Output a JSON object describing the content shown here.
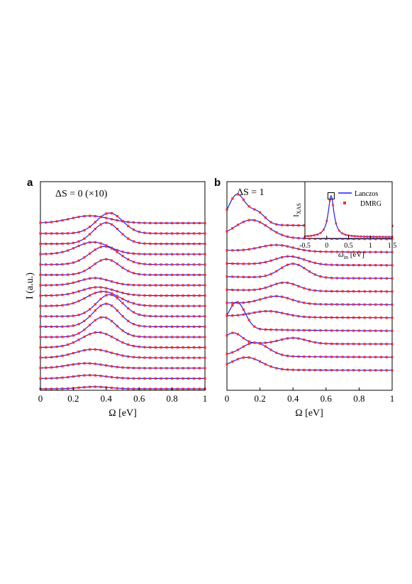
{
  "colors": {
    "line": "#1a1aff",
    "marker": "#ff2a2a",
    "axis": "#000000"
  },
  "chart_data": [
    {
      "id": "a",
      "type": "line",
      "panel_label": "a",
      "annotation": "ΔS = 0 (×10)",
      "xlabel": "Ω [eV]",
      "ylabel": "I (a.u.)",
      "xlim": [
        0,
        1
      ],
      "xticks": [
        "0",
        "0.2",
        "0.4",
        "0.6",
        "0.8",
        "1"
      ],
      "grid": false,
      "series": [
        {
          "offset": 0,
          "peak_x": 0.33,
          "peak_height": 0.35,
          "width": 0.09
        },
        {
          "offset": 1,
          "peak_x": 0.3,
          "peak_height": 0.55,
          "width": 0.1
        },
        {
          "offset": 2,
          "peak_x": 0.28,
          "peak_height": 0.8,
          "width": 0.11
        },
        {
          "offset": 3,
          "peak_x": 0.32,
          "peak_height": 1.4,
          "width": 0.11
        },
        {
          "offset": 4,
          "peak_x": 0.35,
          "peak_height": 2.5,
          "width": 0.1
        },
        {
          "offset": 5,
          "peak_x": 0.38,
          "peak_height": 3.3,
          "width": 0.08
        },
        {
          "offset": 6,
          "peak_x": 0.4,
          "peak_height": 3.8,
          "width": 0.08
        },
        {
          "offset": 7,
          "peak_x": 0.42,
          "peak_height": 3.6,
          "width": 0.08
        },
        {
          "offset": 8,
          "peak_x": 0.38,
          "peak_height": 2.4,
          "width": 0.1
        },
        {
          "offset": 9,
          "peak_x": 0.35,
          "peak_height": 1.4,
          "width": 0.1
        },
        {
          "offset": 10,
          "peak_x": 0.33,
          "peak_height": 1.2,
          "width": 0.09
        },
        {
          "offset": 11,
          "peak_x": 0.4,
          "peak_height": 2.6,
          "width": 0.08
        },
        {
          "offset": 12,
          "peak_x": 0.39,
          "peak_height": 3.0,
          "width": 0.09
        },
        {
          "offset": 13,
          "peak_x": 0.32,
          "peak_height": 2.0,
          "width": 0.1
        },
        {
          "offset": 14,
          "peak_x": 0.4,
          "peak_height": 3.5,
          "width": 0.08
        },
        {
          "offset": 15,
          "peak_x": 0.42,
          "peak_height": 3.4,
          "width": 0.08
        },
        {
          "offset": 16,
          "peak_x": 0.3,
          "peak_height": 1.2,
          "width": 0.12
        }
      ]
    },
    {
      "id": "b",
      "type": "line",
      "panel_label": "b",
      "annotation": "ΔS = 1",
      "xlabel": "Ω [eV]",
      "xlim": [
        0,
        1
      ],
      "xticks": [
        "0",
        "0.2",
        "0.4",
        "0.6",
        "0.8",
        "1"
      ],
      "grid": false,
      "series": [
        {
          "offset": 0,
          "peaks": [
            [
              0.12,
              1.9,
              0.09
            ]
          ],
          "tail": 0.2
        },
        {
          "offset": 1,
          "peaks": [
            [
              0.17,
              2.1,
              0.08
            ]
          ],
          "tail": 0.3
        },
        {
          "offset": 2,
          "peaks": [
            [
              0.04,
              1.6,
              0.05
            ],
            [
              0.4,
              0.9,
              0.08
            ]
          ],
          "tail": 0.2
        },
        {
          "offset": 3,
          "peaks": [
            [
              0.06,
              4.2,
              0.05
            ]
          ],
          "tail": 0.4
        },
        {
          "offset": 4,
          "peaks": [
            [
              0.25,
              0.9,
              0.1
            ]
          ],
          "tail": 0.3
        },
        {
          "offset": 5,
          "peaks": [
            [
              0.3,
              1.2,
              0.09
            ]
          ],
          "tail": 0.3
        },
        {
          "offset": 6,
          "peaks": [
            [
              0.35,
              1.3,
              0.08
            ]
          ],
          "tail": 0.3
        },
        {
          "offset": 7,
          "peaks": [
            [
              0.4,
              2.2,
              0.08
            ]
          ],
          "tail": 0.3
        },
        {
          "offset": 8,
          "peaks": [
            [
              0.38,
              1.3,
              0.09
            ]
          ],
          "tail": 0.3
        },
        {
          "offset": 9,
          "peaks": [
            [
              0.3,
              1.0,
              0.1
            ]
          ],
          "tail": 0.3
        },
        {
          "offset": 10,
          "peaks": [
            [
              0.15,
              2.8,
              0.1
            ]
          ],
          "tail": 0.3
        },
        {
          "offset": 11,
          "peaks": [
            [
              0.06,
              4.6,
              0.05
            ],
            [
              0.18,
              2.0,
              0.05
            ]
          ],
          "tail": 0.3
        }
      ]
    },
    {
      "id": "inset",
      "type": "line",
      "xlabel": "ω_in [eV]",
      "ylabel": "I_XAS",
      "xlim": [
        -0.5,
        1.5
      ],
      "xticks": [
        "-0.5",
        "0",
        "0.5",
        "1",
        "1.5"
      ],
      "legend": [
        "Lanczos",
        "DMRG"
      ],
      "legend_position": "top-right",
      "peak_x": 0.1,
      "highlight_x": 0.1
    }
  ]
}
